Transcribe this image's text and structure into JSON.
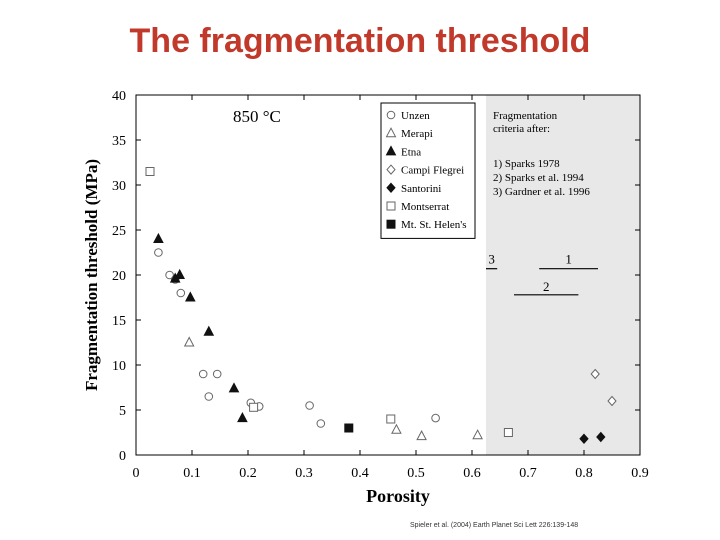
{
  "slide": {
    "title": "The fragmentation threshold",
    "citation": "Spieler et al. (2004) Earth Planet Sci Lett 226:139-148"
  },
  "colors": {
    "title": "#c0392b",
    "shade": "#e8e8e8"
  },
  "chart_data": {
    "type": "scatter",
    "annotation": "850 °C",
    "xlabel": "Porosity",
    "ylabel": "Fragmentation threshold (MPa)",
    "xlim": [
      0,
      0.9
    ],
    "ylim": [
      0,
      40
    ],
    "xticks": [
      "0",
      "0.1",
      "0.2",
      "0.3",
      "0.4",
      "0.5",
      "0.6",
      "0.7",
      "0.8",
      "0.9"
    ],
    "yticks": [
      "0",
      "5",
      "10",
      "15",
      "20",
      "25",
      "30",
      "35",
      "40"
    ],
    "grid": false,
    "legend_position": "top-right",
    "series": [
      {
        "name": "Unzen",
        "marker": "open-circle",
        "points": [
          [
            0.04,
            22.5
          ],
          [
            0.06,
            20
          ],
          [
            0.07,
            19.5
          ],
          [
            0.08,
            18
          ],
          [
            0.12,
            9
          ],
          [
            0.13,
            6.5
          ],
          [
            0.145,
            9
          ],
          [
            0.205,
            5.8
          ],
          [
            0.22,
            5.4
          ],
          [
            0.31,
            5.5
          ],
          [
            0.33,
            3.5
          ],
          [
            0.535,
            4.1
          ]
        ]
      },
      {
        "name": "Merapi",
        "marker": "open-triangle",
        "points": [
          [
            0.095,
            12.5
          ],
          [
            0.465,
            2.8
          ],
          [
            0.51,
            2.1
          ],
          [
            0.61,
            2.2
          ]
        ]
      },
      {
        "name": "Etna",
        "marker": "filled-triangle",
        "points": [
          [
            0.04,
            24
          ],
          [
            0.07,
            19.6
          ],
          [
            0.078,
            20
          ],
          [
            0.097,
            17.5
          ],
          [
            0.13,
            13.7
          ],
          [
            0.175,
            7.4
          ],
          [
            0.19,
            4.1
          ]
        ]
      },
      {
        "name": "Campi Flegrei",
        "marker": "open-diamond",
        "points": [
          [
            0.82,
            9
          ],
          [
            0.85,
            6
          ]
        ]
      },
      {
        "name": "Santorini",
        "marker": "filled-diamond",
        "points": [
          [
            0.8,
            1.8
          ],
          [
            0.83,
            2
          ]
        ]
      },
      {
        "name": "Montserrat",
        "marker": "open-square",
        "points": [
          [
            0.025,
            31.5
          ],
          [
            0.21,
            5.3
          ],
          [
            0.455,
            4
          ],
          [
            0.665,
            2.5
          ]
        ]
      },
      {
        "name": "Mt. St. Helen's",
        "marker": "filled-square",
        "points": [
          [
            0.38,
            3
          ]
        ]
      }
    ],
    "criteria_box": {
      "title_lines": [
        "Fragmentation",
        "criteria after:"
      ],
      "entries": [
        "1) Sparks 1978",
        "2) Sparks et al. 1994",
        "3) Gardner et al. 1996"
      ],
      "x_range": [
        0.625,
        0.9
      ],
      "lines": [
        {
          "label": "3",
          "x": [
            0.625,
            0.645
          ],
          "y": 20.7
        },
        {
          "label": "1",
          "x": [
            0.72,
            0.825
          ],
          "y": 20.7
        },
        {
          "label": "2",
          "x": [
            0.675,
            0.79
          ],
          "y": 17.8
        }
      ]
    }
  }
}
